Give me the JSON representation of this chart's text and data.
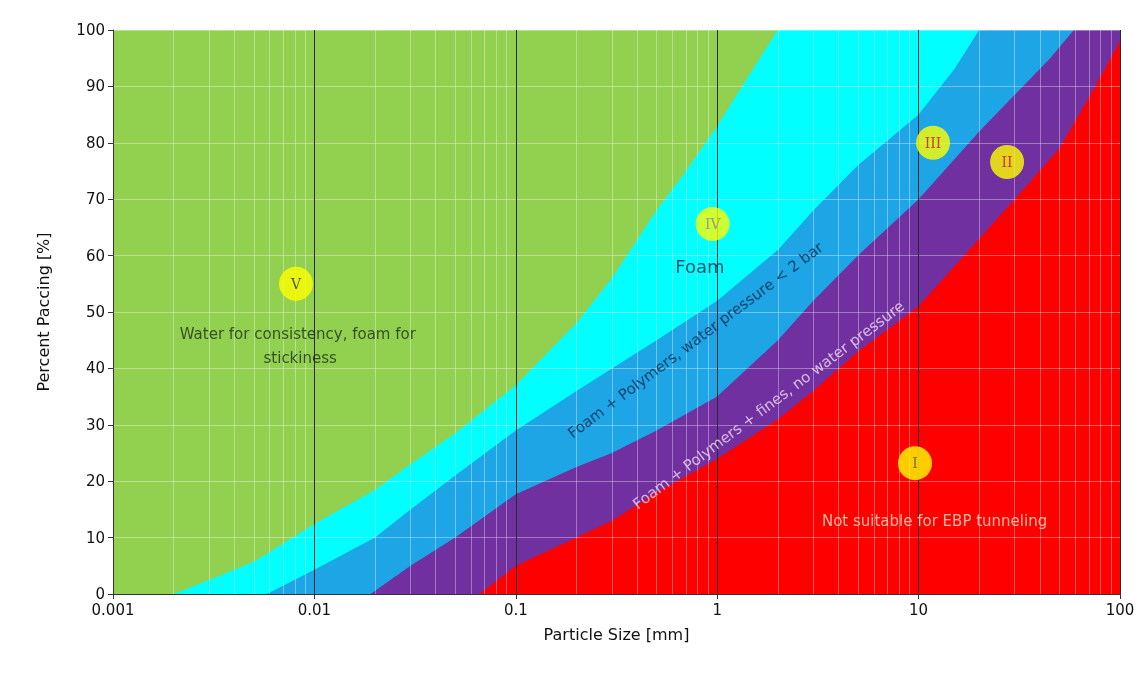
{
  "chart_data": {
    "type": "area",
    "xlabel": "Particle Size [mm]",
    "ylabel": "Percent Paccing [%]",
    "log": "x",
    "xlim": [
      0.001,
      100
    ],
    "xticks": [
      0.001,
      0.01,
      0.1,
      1,
      10,
      100
    ],
    "ylim": [
      0,
      100
    ],
    "yticks": [
      0,
      10,
      20,
      30,
      40,
      50,
      60,
      70,
      80,
      90,
      100
    ],
    "grid": true,
    "series": [
      {
        "color": "#00ffff",
        "x": [
          0.002,
          0.003,
          0.005,
          0.01,
          0.02,
          0.03,
          0.05,
          0.1,
          0.2,
          0.3,
          0.5,
          0.7,
          1,
          1.5,
          2,
          100
        ],
        "values": [
          0,
          2.5,
          5.7,
          12.4,
          18.5,
          23,
          28.5,
          37,
          48,
          56,
          68,
          75,
          83,
          93,
          100,
          100
        ]
      },
      {
        "color": "#1ea5e6",
        "x": [
          0.0058,
          0.01,
          0.02,
          0.03,
          0.05,
          0.1,
          0.2,
          0.3,
          0.5,
          1,
          2,
          3,
          5,
          10,
          15,
          20,
          100
        ],
        "values": [
          0,
          4.3,
          10,
          15,
          21,
          29,
          36,
          40,
          45,
          52,
          61,
          68,
          76,
          85,
          93,
          100,
          100
        ]
      },
      {
        "color": "#7030a0",
        "x": [
          0.019,
          0.03,
          0.05,
          0.1,
          0.2,
          0.3,
          0.5,
          1,
          2,
          3,
          5,
          10,
          20,
          30,
          45,
          59,
          100
        ],
        "values": [
          0,
          5,
          10,
          17.7,
          22.5,
          25,
          29,
          35,
          45,
          52,
          60,
          70,
          82,
          88.5,
          95,
          100,
          100
        ]
      },
      {
        "color": "#ff0000",
        "x": [
          0.066,
          0.1,
          0.2,
          0.3,
          0.5,
          1,
          2,
          3,
          5,
          10,
          20,
          30,
          50,
          70,
          100
        ],
        "values": [
          0,
          5,
          10,
          13,
          18,
          24,
          31,
          36,
          43,
          51,
          63,
          70,
          79,
          88,
          98
        ]
      }
    ],
    "annotations": [
      "V",
      "Water for consistency, foam for stickiness",
      "IV",
      "Foam",
      "Foam + Polymers, water pressure < 2 bar",
      "Foam + Polymers + fines, no water pressure",
      "III",
      "II",
      "I",
      "Not suitable for EBP tunneling"
    ]
  }
}
